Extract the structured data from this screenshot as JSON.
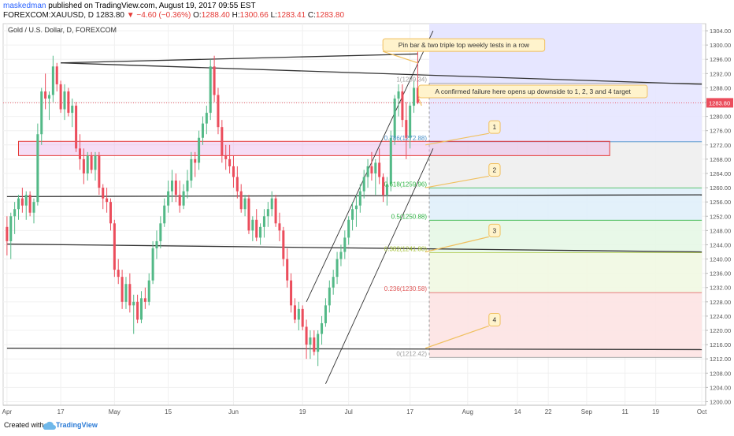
{
  "header": {
    "author": "maskedman",
    "published": "published on TradingView.com, August 19, 2017 09:55 EST",
    "symbol": "FOREXCOM:XAUUSD, D",
    "last": "1283.80",
    "change": "▼ −4.60 (−0.36%)",
    "o_label": "O:",
    "o": "1288.40",
    "h_label": "H:",
    "h": "1300.66",
    "l_label": "L:",
    "l": "1283.41",
    "c_label": "C:",
    "c": "1283.80"
  },
  "footer": {
    "created": "Created with",
    "brand": "TradingView"
  },
  "chart_data": {
    "type": "candlestick",
    "title": "Gold / U.S. Dollar, D, FOREXCOM",
    "ylim": [
      1199,
      1306
    ],
    "y_ticks": [
      1200,
      1204,
      1208,
      1212,
      1216,
      1220,
      1224,
      1228,
      1232,
      1236,
      1240,
      1244,
      1248,
      1252,
      1256,
      1260,
      1264,
      1268,
      1272,
      1276,
      1280,
      1284,
      1288,
      1292,
      1296,
      1300,
      1304
    ],
    "x_ticks": [
      {
        "label": "Apr",
        "day": 0
      },
      {
        "label": "17",
        "day": 14
      },
      {
        "label": "May",
        "day": 28
      },
      {
        "label": "15",
        "day": 42
      },
      {
        "label": "Jun",
        "day": 59
      },
      {
        "label": "19",
        "day": 77
      },
      {
        "label": "Jul",
        "day": 89
      },
      {
        "label": "17",
        "day": 105
      },
      {
        "label": "Aug",
        "day": 120
      },
      {
        "label": "14",
        "day": 133
      },
      {
        "label": "22",
        "day": 141
      },
      {
        "label": "Sep",
        "day": 151
      },
      {
        "label": "11",
        "day": 161
      },
      {
        "label": "19",
        "day": 169
      },
      {
        "label": "Oct",
        "day": 181
      }
    ],
    "ohlc": [
      [
        0,
        1249,
        1252,
        1241,
        1245
      ],
      [
        1,
        1245,
        1253,
        1240,
        1252
      ],
      [
        2,
        1252,
        1256,
        1247,
        1254
      ],
      [
        3,
        1254,
        1258,
        1251,
        1257
      ],
      [
        4,
        1257,
        1260,
        1253,
        1255
      ],
      [
        5,
        1255,
        1259,
        1251,
        1258
      ],
      [
        6,
        1258,
        1259,
        1252,
        1253
      ],
      [
        7,
        1253,
        1257,
        1250,
        1256
      ],
      [
        8,
        1256,
        1278,
        1255,
        1275
      ],
      [
        9,
        1275,
        1288,
        1272,
        1287
      ],
      [
        10,
        1287,
        1292,
        1282,
        1285
      ],
      [
        11,
        1285,
        1287,
        1279,
        1286
      ],
      [
        12,
        1286,
        1297,
        1284,
        1294
      ],
      [
        13,
        1294,
        1295,
        1287,
        1289
      ],
      [
        14,
        1289,
        1290,
        1281,
        1282
      ],
      [
        15,
        1282,
        1289,
        1279,
        1287
      ],
      [
        16,
        1287,
        1288,
        1280,
        1281
      ],
      [
        17,
        1281,
        1285,
        1277,
        1283
      ],
      [
        18,
        1283,
        1284,
        1270,
        1271
      ],
      [
        19,
        1271,
        1275,
        1265,
        1268
      ],
      [
        20,
        1268,
        1271,
        1261,
        1264
      ],
      [
        21,
        1264,
        1270,
        1262,
        1269
      ],
      [
        22,
        1269,
        1270,
        1264,
        1265
      ],
      [
        23,
        1265,
        1270,
        1262,
        1269
      ],
      [
        24,
        1269,
        1270,
        1258,
        1260
      ],
      [
        25,
        1260,
        1261,
        1254,
        1257
      ],
      [
        26,
        1257,
        1260,
        1253,
        1256
      ],
      [
        27,
        1256,
        1257,
        1248,
        1250
      ],
      [
        28,
        1250,
        1251,
        1235,
        1237
      ],
      [
        29,
        1237,
        1240,
        1233,
        1235
      ],
      [
        30,
        1235,
        1237,
        1226,
        1228
      ],
      [
        31,
        1228,
        1235,
        1226,
        1233
      ],
      [
        32,
        1233,
        1236,
        1225,
        1227
      ],
      [
        33,
        1227,
        1230,
        1219,
        1228
      ],
      [
        34,
        1228,
        1230,
        1222,
        1223
      ],
      [
        35,
        1223,
        1231,
        1222,
        1229
      ],
      [
        36,
        1229,
        1232,
        1226,
        1228
      ],
      [
        37,
        1228,
        1236,
        1227,
        1234
      ],
      [
        38,
        1234,
        1245,
        1233,
        1243
      ],
      [
        39,
        1243,
        1248,
        1240,
        1245
      ],
      [
        40,
        1245,
        1252,
        1243,
        1250
      ],
      [
        41,
        1250,
        1257,
        1249,
        1255
      ],
      [
        42,
        1255,
        1262,
        1253,
        1259
      ],
      [
        43,
        1259,
        1265,
        1256,
        1262
      ],
      [
        44,
        1262,
        1264,
        1256,
        1258
      ],
      [
        45,
        1258,
        1262,
        1253,
        1255
      ],
      [
        46,
        1255,
        1261,
        1254,
        1259
      ],
      [
        47,
        1259,
        1265,
        1257,
        1262
      ],
      [
        48,
        1262,
        1270,
        1260,
        1268
      ],
      [
        49,
        1268,
        1270,
        1263,
        1267
      ],
      [
        50,
        1267,
        1276,
        1265,
        1274
      ],
      [
        51,
        1274,
        1280,
        1272,
        1278
      ],
      [
        52,
        1278,
        1283,
        1275,
        1281
      ],
      [
        53,
        1281,
        1296,
        1279,
        1294
      ],
      [
        54,
        1294,
        1297,
        1284,
        1286
      ],
      [
        55,
        1286,
        1288,
        1275,
        1277
      ],
      [
        56,
        1277,
        1279,
        1267,
        1269
      ],
      [
        57,
        1269,
        1272,
        1265,
        1268
      ],
      [
        58,
        1268,
        1272,
        1264,
        1266
      ],
      [
        59,
        1266,
        1269,
        1260,
        1263
      ],
      [
        60,
        1263,
        1266,
        1257,
        1259
      ],
      [
        61,
        1259,
        1261,
        1253,
        1254
      ],
      [
        62,
        1254,
        1258,
        1252,
        1257
      ],
      [
        63,
        1257,
        1258,
        1247,
        1248
      ],
      [
        64,
        1248,
        1252,
        1245,
        1251
      ],
      [
        65,
        1251,
        1254,
        1245,
        1246
      ],
      [
        66,
        1246,
        1250,
        1244,
        1249
      ],
      [
        67,
        1249,
        1254,
        1246,
        1252
      ],
      [
        68,
        1252,
        1256,
        1249,
        1254
      ],
      [
        69,
        1254,
        1259,
        1252,
        1257
      ],
      [
        70,
        1257,
        1258,
        1249,
        1250
      ],
      [
        71,
        1250,
        1253,
        1245,
        1248
      ],
      [
        72,
        1248,
        1249,
        1238,
        1240
      ],
      [
        73,
        1240,
        1243,
        1232,
        1234
      ],
      [
        74,
        1234,
        1236,
        1225,
        1227
      ],
      [
        75,
        1227,
        1229,
        1222,
        1223
      ],
      [
        76,
        1223,
        1228,
        1220,
        1226
      ],
      [
        77,
        1226,
        1227,
        1220,
        1221
      ],
      [
        78,
        1221,
        1223,
        1212,
        1216
      ],
      [
        79,
        1216,
        1220,
        1212,
        1218
      ],
      [
        80,
        1218,
        1220,
        1213,
        1214
      ],
      [
        81,
        1214,
        1220,
        1210,
        1219
      ],
      [
        82,
        1219,
        1224,
        1216,
        1222
      ],
      [
        83,
        1222,
        1229,
        1221,
        1227
      ],
      [
        84,
        1227,
        1234,
        1225,
        1232
      ],
      [
        85,
        1232,
        1237,
        1230,
        1235
      ],
      [
        86,
        1235,
        1242,
        1233,
        1240
      ],
      [
        87,
        1240,
        1244,
        1238,
        1242
      ],
      [
        88,
        1242,
        1248,
        1240,
        1246
      ],
      [
        89,
        1246,
        1252,
        1244,
        1251
      ],
      [
        90,
        1251,
        1256,
        1248,
        1254
      ],
      [
        91,
        1254,
        1258,
        1249,
        1255
      ],
      [
        92,
        1255,
        1261,
        1253,
        1259
      ],
      [
        93,
        1259,
        1265,
        1257,
        1263
      ],
      [
        94,
        1263,
        1268,
        1260,
        1266
      ],
      [
        95,
        1266,
        1270,
        1262,
        1264
      ],
      [
        96,
        1264,
        1268,
        1258,
        1267
      ],
      [
        97,
        1267,
        1271,
        1261,
        1263
      ],
      [
        98,
        1263,
        1264,
        1256,
        1258
      ],
      [
        99,
        1258,
        1263,
        1255,
        1261
      ],
      [
        100,
        1261,
        1276,
        1259,
        1274
      ],
      [
        101,
        1274,
        1286,
        1272,
        1285
      ],
      [
        102,
        1285,
        1289,
        1280,
        1287
      ],
      [
        103,
        1287,
        1289,
        1277,
        1279
      ],
      [
        104,
        1279,
        1284,
        1268,
        1274
      ],
      [
        105,
        1274,
        1284,
        1271,
        1283
      ],
      [
        106,
        1283,
        1290,
        1281,
        1288
      ],
      [
        107,
        1288,
        1300.66,
        1283.41,
        1283.8
      ]
    ],
    "trend_lines": [
      {
        "p1": [
          14,
          1295
        ],
        "p2": [
          107,
          1297.5
        ]
      },
      {
        "p1": [
          14,
          1295
        ],
        "p2": [
          181,
          1289
        ]
      },
      {
        "p1": [
          0,
          1257.5
        ],
        "p2": [
          181,
          1258
        ]
      },
      {
        "p1": [
          0,
          1244.2
        ],
        "p2": [
          181,
          1242
        ]
      },
      {
        "p1": [
          0,
          1215
        ],
        "p2": [
          181,
          1214.6
        ]
      }
    ],
    "channel": [
      {
        "p1": [
          83,
          1205
        ],
        "p2": [
          111,
          1271
        ]
      },
      {
        "p1": [
          78,
          1228
        ],
        "p2": [
          111,
          1304
        ]
      }
    ],
    "support_zone": {
      "x0": 3,
      "x1": 157,
      "y0": 1269,
      "y1": 1273
    },
    "last_price_line": 1283.8,
    "fib": {
      "x0": 110,
      "x1": 181,
      "label_x": 110,
      "levels": [
        {
          "ratio": "1",
          "value": 1289.34,
          "label": "1(1289.34)",
          "color": "#9e9e9e",
          "bg": "#e6e6ff"
        },
        {
          "ratio": "0.786",
          "value": 1272.88,
          "label": "0.786(1272.88)",
          "color": "#4a90c8",
          "bg": "#eeeeee"
        },
        {
          "ratio": "0.618",
          "value": 1259.96,
          "label": "0.618(1259.96)",
          "color": "#2fb344",
          "bg": "#e0f0fa"
        },
        {
          "ratio": "0.5",
          "value": 1250.88,
          "label": "0.5(1250.88)",
          "color": "#2fb344",
          "bg": "#e6f7e6"
        },
        {
          "ratio": "0.382",
          "value": 1241.8,
          "label": "0.382(1241.80)",
          "color": "#a6c23a",
          "bg": "#f1f8e2"
        },
        {
          "ratio": "0.236",
          "value": 1230.58,
          "label": "0.236(1230.58)",
          "color": "#e05858",
          "bg": "#fde3e3"
        },
        {
          "ratio": "0",
          "value": 1212.42,
          "label": "0(1212.42)",
          "color": "#9e9e9e",
          "bg": null
        }
      ],
      "top_band": {
        "y0": 1289.34,
        "y1": 1306,
        "bg": "#e6e6ff"
      }
    },
    "annotations": [
      {
        "text": "Pin bar & two triple top weekly tests in a row",
        "box_day": 119,
        "box_y": 1300,
        "to": [
          107,
          1295
        ]
      },
      {
        "text": "A confirmed failure here opens up downside to 1, 2, 3 and 4 target",
        "box_day": 137,
        "box_y": 1287,
        "to": [
          108,
          1283
        ]
      },
      {
        "text": "1",
        "box_day": 127,
        "box_y": 1277,
        "to": [
          109,
          1272
        ]
      },
      {
        "text": "2",
        "box_day": 127,
        "box_y": 1265,
        "to": [
          109,
          1260
        ]
      },
      {
        "text": "3",
        "box_day": 127,
        "box_y": 1248,
        "to": [
          109,
          1242
        ]
      },
      {
        "text": "4",
        "box_day": 127,
        "box_y": 1223,
        "to": [
          109,
          1215
        ]
      }
    ],
    "last_price_label": "1283.80",
    "colors": {
      "up": "#53b987",
      "down": "#eb4d5c",
      "axis_text": "#555555",
      "zone": "#e8b4e8",
      "price_tag": "#eb4d5c"
    }
  }
}
